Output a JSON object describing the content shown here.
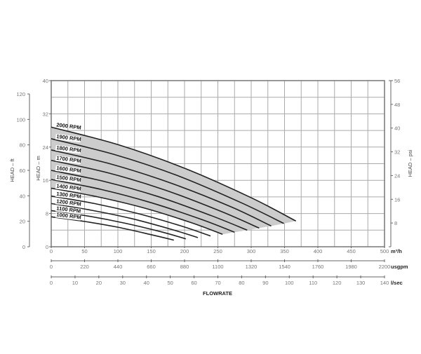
{
  "chart_data": {
    "type": "line",
    "title": "",
    "xlabel": "FLOWRATE",
    "x_axes": [
      {
        "unit": "m³/h",
        "range": [
          0,
          500
        ],
        "ticks": [
          0,
          50,
          100,
          150,
          200,
          250,
          300,
          350,
          400,
          450,
          500
        ]
      },
      {
        "unit": "usgpm",
        "range": [
          0,
          2200
        ],
        "ticks": [
          0,
          220,
          440,
          660,
          880,
          1100,
          1320,
          1540,
          1760,
          1980,
          2200
        ]
      },
      {
        "unit": "l/sec",
        "range": [
          0,
          140
        ],
        "ticks": [
          0,
          10,
          20,
          30,
          40,
          50,
          60,
          70,
          80,
          90,
          100,
          110,
          120,
          130,
          140
        ]
      }
    ],
    "y_axes": [
      {
        "label": "HEAD – ft",
        "range": [
          0,
          120
        ],
        "ticks": [
          0,
          20,
          40,
          60,
          80,
          100,
          120
        ]
      },
      {
        "label": "HEAD – m",
        "range": [
          0,
          40
        ],
        "ticks": [
          0,
          8,
          16,
          24,
          32,
          40
        ]
      },
      {
        "label": "HEAD – psi",
        "range": [
          0,
          56
        ],
        "ticks": [
          8,
          16,
          24,
          32,
          40,
          48,
          56
        ]
      }
    ],
    "grid": true,
    "shaded_band": [
      "2000 RPM",
      "1400 RPM"
    ],
    "colors": {
      "curve": "#222222",
      "band": "#cccccc",
      "grid": "#aaaaaa"
    },
    "series": [
      {
        "name": "2000 RPM",
        "x": [
          0,
          100,
          200,
          300,
          367
        ],
        "y": [
          28.8,
          24.6,
          18.9,
          11.8,
          6.2
        ]
      },
      {
        "name": "1900 RPM",
        "x": [
          0,
          95,
          190,
          285,
          349
        ],
        "y": [
          26.0,
          22.2,
          17.1,
          10.6,
          5.6
        ]
      },
      {
        "name": "1800 RPM",
        "x": [
          0,
          90,
          180,
          270,
          330
        ],
        "y": [
          23.3,
          19.9,
          15.3,
          9.6,
          5.0
        ]
      },
      {
        "name": "1700 RPM",
        "x": [
          0,
          85,
          170,
          255,
          312
        ],
        "y": [
          20.8,
          17.8,
          13.7,
          8.5,
          4.5
        ]
      },
      {
        "name": "1600 RPM",
        "x": [
          0,
          80,
          160,
          240,
          294
        ],
        "y": [
          18.4,
          15.7,
          12.1,
          7.5,
          4.0
        ]
      },
      {
        "name": "1500 RPM",
        "x": [
          0,
          75,
          150,
          225,
          275
        ],
        "y": [
          16.2,
          13.8,
          10.6,
          6.6,
          3.5
        ]
      },
      {
        "name": "1400 RPM",
        "x": [
          0,
          70,
          140,
          210,
          257
        ],
        "y": [
          14.1,
          12.0,
          9.3,
          5.8,
          3.0
        ]
      },
      {
        "name": "1300 RPM",
        "x": [
          0,
          65,
          130,
          195,
          239
        ],
        "y": [
          12.2,
          10.4,
          8.0,
          5.0,
          2.6
        ]
      },
      {
        "name": "1200 RPM",
        "x": [
          0,
          60,
          120,
          180,
          220
        ],
        "y": [
          10.4,
          8.8,
          6.8,
          4.2,
          2.2
        ]
      },
      {
        "name": "1100 RPM",
        "x": [
          0,
          55,
          110,
          165,
          202
        ],
        "y": [
          8.7,
          7.4,
          5.7,
          3.6,
          1.9
        ]
      },
      {
        "name": "1000 RPM",
        "x": [
          0,
          50,
          100,
          150,
          184
        ],
        "y": [
          7.2,
          6.1,
          4.7,
          2.9,
          1.6
        ]
      }
    ]
  }
}
